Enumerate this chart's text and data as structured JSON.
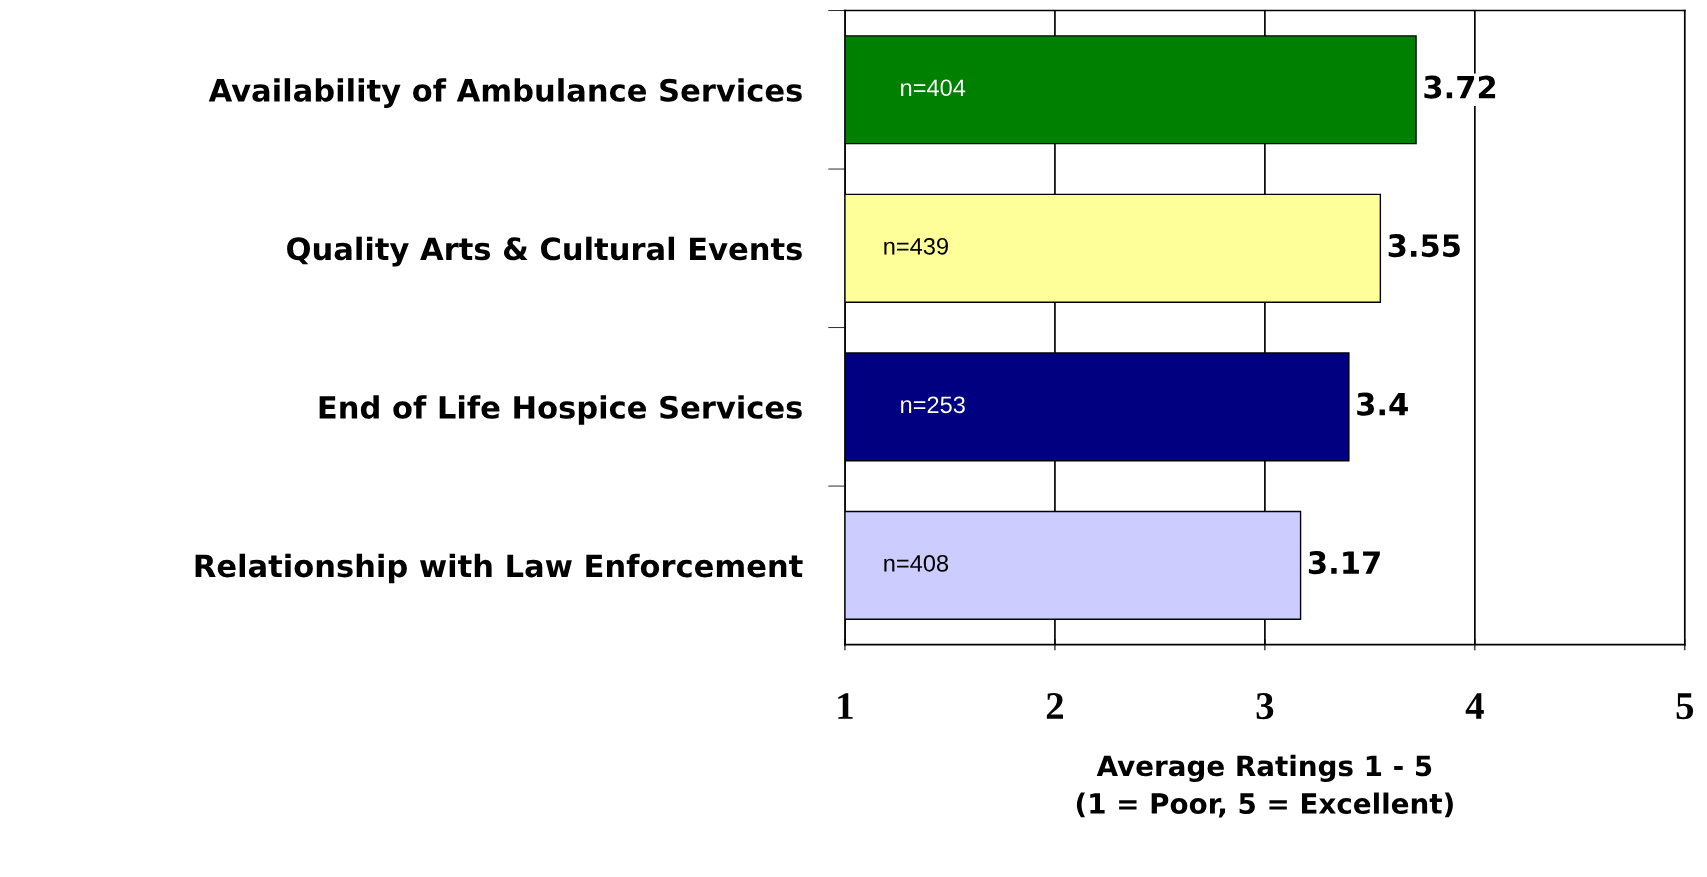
{
  "chart_data": {
    "type": "bar",
    "orientation": "horizontal",
    "categories": [
      "Availability of Ambulance Services",
      "Quality Arts & Cultural Events",
      "End of Life Hospice Services",
      "Relationship with Law Enforcement"
    ],
    "values": [
      3.72,
      3.55,
      3.4,
      3.17
    ],
    "colors": [
      "#008000",
      "#ffff99",
      "#000080",
      "#ccccff"
    ],
    "xlim": [
      1,
      5
    ],
    "xticks": [
      1,
      2,
      3,
      4,
      5
    ],
    "grid": "x",
    "data_labels": true,
    "xlabel": "Average Ratings 1 - 5\n(1 = Poor, 5 = Excellent)",
    "annotations": [
      "n=404",
      "n=439",
      "n=253",
      "n=408"
    ]
  }
}
